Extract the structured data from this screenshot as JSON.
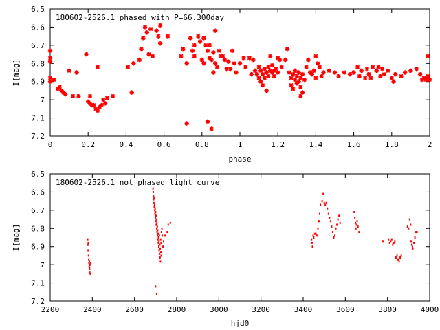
{
  "colors": {
    "marker": "#ff0000",
    "axis": "#000000",
    "background": "#ffffff"
  },
  "chart_data": [
    {
      "type": "scatter",
      "title": "180602-2526.1 phased with P=66.300day",
      "xlabel": "phase",
      "ylabel": "I[mag]",
      "xlim": [
        0,
        2
      ],
      "ylim": [
        6.5,
        7.2
      ],
      "y_inverted": true,
      "grid": false,
      "legend": "none",
      "marker": "star",
      "x_ticks": [
        "0",
        "0.2",
        "0.4",
        "0.6",
        "0.8",
        "1",
        "1.2",
        "1.4",
        "1.6",
        "1.8",
        "2"
      ],
      "y_ticks": [
        "6.5",
        "6.6",
        "6.7",
        "6.8",
        "6.9",
        "7",
        "7.1",
        "7.2"
      ],
      "points": [
        [
          0.0,
          6.73
        ],
        [
          0.0,
          6.77
        ],
        [
          0.0,
          6.79
        ],
        [
          0.0,
          6.88
        ],
        [
          0.0,
          6.9
        ],
        [
          0.02,
          6.89
        ],
        [
          0.04,
          6.94
        ],
        [
          0.05,
          6.93
        ],
        [
          0.06,
          6.95
        ],
        [
          0.07,
          6.96
        ],
        [
          0.08,
          6.97
        ],
        [
          0.1,
          6.84
        ],
        [
          0.12,
          6.98
        ],
        [
          0.14,
          6.85
        ],
        [
          0.15,
          6.98
        ],
        [
          0.19,
          6.75
        ],
        [
          0.2,
          7.01
        ],
        [
          0.21,
          6.98
        ],
        [
          0.21,
          7.02
        ],
        [
          0.22,
          7.03
        ],
        [
          0.23,
          7.03
        ],
        [
          0.24,
          7.05
        ],
        [
          0.25,
          7.06
        ],
        [
          0.25,
          6.82
        ],
        [
          0.26,
          7.04
        ],
        [
          0.27,
          7.03
        ],
        [
          0.28,
          7.0
        ],
        [
          0.29,
          7.02
        ],
        [
          0.3,
          6.99
        ],
        [
          0.33,
          6.98
        ],
        [
          0.41,
          6.82
        ],
        [
          0.43,
          6.96
        ],
        [
          0.44,
          6.8
        ],
        [
          0.47,
          6.78
        ],
        [
          0.48,
          6.72
        ],
        [
          0.49,
          6.66
        ],
        [
          0.5,
          6.6
        ],
        [
          0.51,
          6.63
        ],
        [
          0.52,
          6.75
        ],
        [
          0.53,
          6.61
        ],
        [
          0.54,
          6.76
        ],
        [
          0.56,
          6.62
        ],
        [
          0.57,
          6.65
        ],
        [
          0.58,
          6.69
        ],
        [
          0.58,
          6.59
        ],
        [
          0.62,
          6.65
        ],
        [
          0.69,
          6.76
        ],
        [
          0.7,
          6.72
        ],
        [
          0.72,
          6.8
        ],
        [
          0.72,
          7.13
        ],
        [
          0.74,
          6.66
        ],
        [
          0.75,
          6.73
        ],
        [
          0.76,
          6.7
        ],
        [
          0.76,
          6.76
        ],
        [
          0.78,
          6.65
        ],
        [
          0.79,
          6.68
        ],
        [
          0.8,
          6.78
        ],
        [
          0.81,
          6.66
        ],
        [
          0.81,
          6.8
        ],
        [
          0.82,
          6.7
        ],
        [
          0.83,
          6.73
        ],
        [
          0.83,
          7.12
        ],
        [
          0.84,
          6.7
        ],
        [
          0.84,
          6.77
        ],
        [
          0.85,
          6.78
        ],
        [
          0.85,
          7.16
        ],
        [
          0.86,
          6.74
        ],
        [
          0.86,
          6.85
        ],
        [
          0.87,
          6.8
        ],
        [
          0.87,
          6.62
        ],
        [
          0.88,
          6.82
        ],
        [
          0.89,
          6.73
        ],
        [
          0.9,
          6.76
        ],
        [
          0.91,
          6.76
        ],
        [
          0.92,
          6.78
        ],
        [
          0.93,
          6.83
        ],
        [
          0.94,
          6.79
        ],
        [
          0.95,
          6.83
        ],
        [
          0.96,
          6.73
        ],
        [
          0.97,
          6.8
        ],
        [
          0.98,
          6.85
        ],
        [
          1.0,
          6.8
        ],
        [
          1.02,
          6.77
        ],
        [
          1.03,
          6.82
        ],
        [
          1.05,
          6.77
        ],
        [
          1.06,
          6.86
        ],
        [
          1.07,
          6.78
        ],
        [
          1.08,
          6.84
        ],
        [
          1.09,
          6.86
        ],
        [
          1.1,
          6.82
        ],
        [
          1.1,
          6.88
        ],
        [
          1.11,
          6.84
        ],
        [
          1.11,
          6.9
        ],
        [
          1.12,
          6.86
        ],
        [
          1.12,
          6.92
        ],
        [
          1.13,
          6.83
        ],
        [
          1.13,
          6.88
        ],
        [
          1.14,
          6.85
        ],
        [
          1.14,
          6.95
        ],
        [
          1.15,
          6.82
        ],
        [
          1.15,
          6.87
        ],
        [
          1.16,
          6.84
        ],
        [
          1.16,
          6.76
        ],
        [
          1.17,
          6.85
        ],
        [
          1.17,
          6.81
        ],
        [
          1.18,
          6.84
        ],
        [
          1.18,
          6.87
        ],
        [
          1.19,
          6.83
        ],
        [
          1.2,
          6.85
        ],
        [
          1.2,
          6.77
        ],
        [
          1.21,
          6.78
        ],
        [
          1.22,
          6.82
        ],
        [
          1.24,
          6.78
        ],
        [
          1.25,
          6.72
        ],
        [
          1.26,
          6.85
        ],
        [
          1.27,
          6.88
        ],
        [
          1.27,
          6.92
        ],
        [
          1.28,
          6.86
        ],
        [
          1.28,
          6.94
        ],
        [
          1.29,
          6.84
        ],
        [
          1.29,
          6.89
        ],
        [
          1.3,
          6.87
        ],
        [
          1.3,
          6.91
        ],
        [
          1.31,
          6.85
        ],
        [
          1.31,
          6.9
        ],
        [
          1.32,
          6.88
        ],
        [
          1.32,
          6.93
        ],
        [
          1.32,
          6.98
        ],
        [
          1.33,
          6.96
        ],
        [
          1.33,
          6.86
        ],
        [
          1.34,
          6.89
        ],
        [
          1.35,
          6.82
        ],
        [
          1.36,
          6.78
        ],
        [
          1.37,
          6.85
        ],
        [
          1.38,
          6.86
        ],
        [
          1.39,
          6.84
        ],
        [
          1.4,
          6.76
        ],
        [
          1.4,
          6.88
        ],
        [
          1.41,
          6.8
        ],
        [
          1.42,
          6.82
        ],
        [
          1.43,
          6.87
        ],
        [
          1.44,
          6.85
        ],
        [
          1.47,
          6.84
        ],
        [
          1.5,
          6.85
        ],
        [
          1.52,
          6.87
        ],
        [
          1.55,
          6.85
        ],
        [
          1.58,
          6.86
        ],
        [
          1.6,
          6.85
        ],
        [
          1.62,
          6.82
        ],
        [
          1.63,
          6.87
        ],
        [
          1.64,
          6.84
        ],
        [
          1.66,
          6.88
        ],
        [
          1.67,
          6.83
        ],
        [
          1.68,
          6.86
        ],
        [
          1.69,
          6.88
        ],
        [
          1.7,
          6.82
        ],
        [
          1.72,
          6.84
        ],
        [
          1.73,
          6.82
        ],
        [
          1.74,
          6.87
        ],
        [
          1.75,
          6.83
        ],
        [
          1.76,
          6.86
        ],
        [
          1.78,
          6.84
        ],
        [
          1.8,
          6.88
        ],
        [
          1.81,
          6.9
        ],
        [
          1.82,
          6.86
        ],
        [
          1.85,
          6.87
        ],
        [
          1.87,
          6.85
        ],
        [
          1.9,
          6.84
        ],
        [
          1.93,
          6.83
        ],
        [
          1.95,
          6.86
        ],
        [
          1.96,
          6.89
        ],
        [
          1.97,
          6.88
        ],
        [
          1.98,
          6.89
        ],
        [
          1.99,
          6.87
        ],
        [
          1.99,
          6.76
        ],
        [
          2.0,
          6.89
        ]
      ]
    },
    {
      "type": "scatter",
      "title": "180602-2526.1 not phased light curve",
      "xlabel": "hjd0",
      "ylabel": "I[mag]",
      "xlim": [
        2200,
        4000
      ],
      "ylim": [
        6.5,
        7.2
      ],
      "y_inverted": true,
      "grid": false,
      "legend": "none",
      "marker": "dot",
      "x_ticks": [
        "2200",
        "2400",
        "2600",
        "2800",
        "3000",
        "3200",
        "3400",
        "3600",
        "3800",
        "4000"
      ],
      "y_ticks": [
        "6.5",
        "6.6",
        "6.7",
        "6.8",
        "6.9",
        "7",
        "7.1",
        "7.2"
      ],
      "points": [
        [
          2378,
          6.86
        ],
        [
          2379,
          6.89
        ],
        [
          2380,
          6.92
        ],
        [
          2381,
          6.88
        ],
        [
          2382,
          6.95
        ],
        [
          2383,
          6.97
        ],
        [
          2384,
          6.99
        ],
        [
          2385,
          7.01
        ],
        [
          2386,
          6.98
        ],
        [
          2387,
          7.02
        ],
        [
          2388,
          7.04
        ],
        [
          2389,
          7.0
        ],
        [
          2390,
          7.05
        ],
        [
          2392,
          6.99
        ],
        [
          2688,
          6.58
        ],
        [
          2689,
          6.6
        ],
        [
          2690,
          6.62
        ],
        [
          2691,
          6.64
        ],
        [
          2692,
          6.66
        ],
        [
          2693,
          6.63
        ],
        [
          2694,
          6.68
        ],
        [
          2695,
          6.67
        ],
        [
          2696,
          6.7
        ],
        [
          2697,
          6.72
        ],
        [
          2698,
          6.69
        ],
        [
          2699,
          6.74
        ],
        [
          2700,
          6.71
        ],
        [
          2700,
          7.12
        ],
        [
          2701,
          6.76
        ],
        [
          2702,
          6.73
        ],
        [
          2703,
          6.78
        ],
        [
          2704,
          6.75
        ],
        [
          2705,
          6.8
        ],
        [
          2705,
          7.16
        ],
        [
          2706,
          6.77
        ],
        [
          2707,
          6.82
        ],
        [
          2708,
          6.79
        ],
        [
          2709,
          6.84
        ],
        [
          2710,
          6.81
        ],
        [
          2711,
          6.86
        ],
        [
          2712,
          6.83
        ],
        [
          2713,
          6.88
        ],
        [
          2714,
          6.85
        ],
        [
          2715,
          6.9
        ],
        [
          2716,
          6.87
        ],
        [
          2717,
          6.92
        ],
        [
          2718,
          6.84
        ],
        [
          2719,
          6.94
        ],
        [
          2720,
          6.89
        ],
        [
          2721,
          6.96
        ],
        [
          2722,
          6.91
        ],
        [
          2723,
          6.98
        ],
        [
          2724,
          6.86
        ],
        [
          2725,
          6.93
        ],
        [
          2726,
          6.88
        ],
        [
          2727,
          6.95
        ],
        [
          2728,
          6.82
        ],
        [
          2730,
          6.8
        ],
        [
          2732,
          6.84
        ],
        [
          2735,
          6.9
        ],
        [
          2738,
          6.87
        ],
        [
          2745,
          6.84
        ],
        [
          2755,
          6.82
        ],
        [
          2760,
          6.78
        ],
        [
          2770,
          6.77
        ],
        [
          3440,
          6.86
        ],
        [
          3442,
          6.88
        ],
        [
          3444,
          6.9
        ],
        [
          3447,
          6.84
        ],
        [
          3450,
          6.85
        ],
        [
          3455,
          6.83
        ],
        [
          3460,
          6.83
        ],
        [
          3465,
          6.84
        ],
        [
          3470,
          6.8
        ],
        [
          3475,
          6.76
        ],
        [
          3478,
          6.72
        ],
        [
          3482,
          6.67
        ],
        [
          3490,
          6.65
        ],
        [
          3495,
          6.61
        ],
        [
          3500,
          6.66
        ],
        [
          3505,
          6.67
        ],
        [
          3510,
          6.66
        ],
        [
          3515,
          6.69
        ],
        [
          3520,
          6.72
        ],
        [
          3525,
          6.74
        ],
        [
          3530,
          6.76
        ],
        [
          3535,
          6.79
        ],
        [
          3540,
          6.82
        ],
        [
          3545,
          6.85
        ],
        [
          3550,
          6.84
        ],
        [
          3555,
          6.8
        ],
        [
          3560,
          6.78
        ],
        [
          3565,
          6.75
        ],
        [
          3570,
          6.73
        ],
        [
          3575,
          6.77
        ],
        [
          3642,
          6.71
        ],
        [
          3645,
          6.74
        ],
        [
          3648,
          6.77
        ],
        [
          3650,
          6.8
        ],
        [
          3653,
          6.78
        ],
        [
          3656,
          6.76
        ],
        [
          3660,
          6.79
        ],
        [
          3665,
          6.82
        ],
        [
          3778,
          6.87
        ],
        [
          3805,
          6.86
        ],
        [
          3810,
          6.88
        ],
        [
          3815,
          6.87
        ],
        [
          3820,
          6.86
        ],
        [
          3825,
          6.89
        ],
        [
          3830,
          6.88
        ],
        [
          3835,
          6.87
        ],
        [
          3840,
          6.96
        ],
        [
          3845,
          6.95
        ],
        [
          3850,
          6.97
        ],
        [
          3855,
          6.98
        ],
        [
          3860,
          6.96
        ],
        [
          3865,
          6.95
        ],
        [
          3895,
          6.79
        ],
        [
          3900,
          6.8
        ],
        [
          3905,
          6.75
        ],
        [
          3910,
          6.78
        ],
        [
          3912,
          6.87
        ],
        [
          3915,
          6.89
        ],
        [
          3918,
          6.9
        ],
        [
          3920,
          6.91
        ],
        [
          3925,
          6.88
        ],
        [
          3930,
          6.85
        ],
        [
          3935,
          6.82
        ],
        [
          3940,
          6.82
        ]
      ]
    }
  ]
}
